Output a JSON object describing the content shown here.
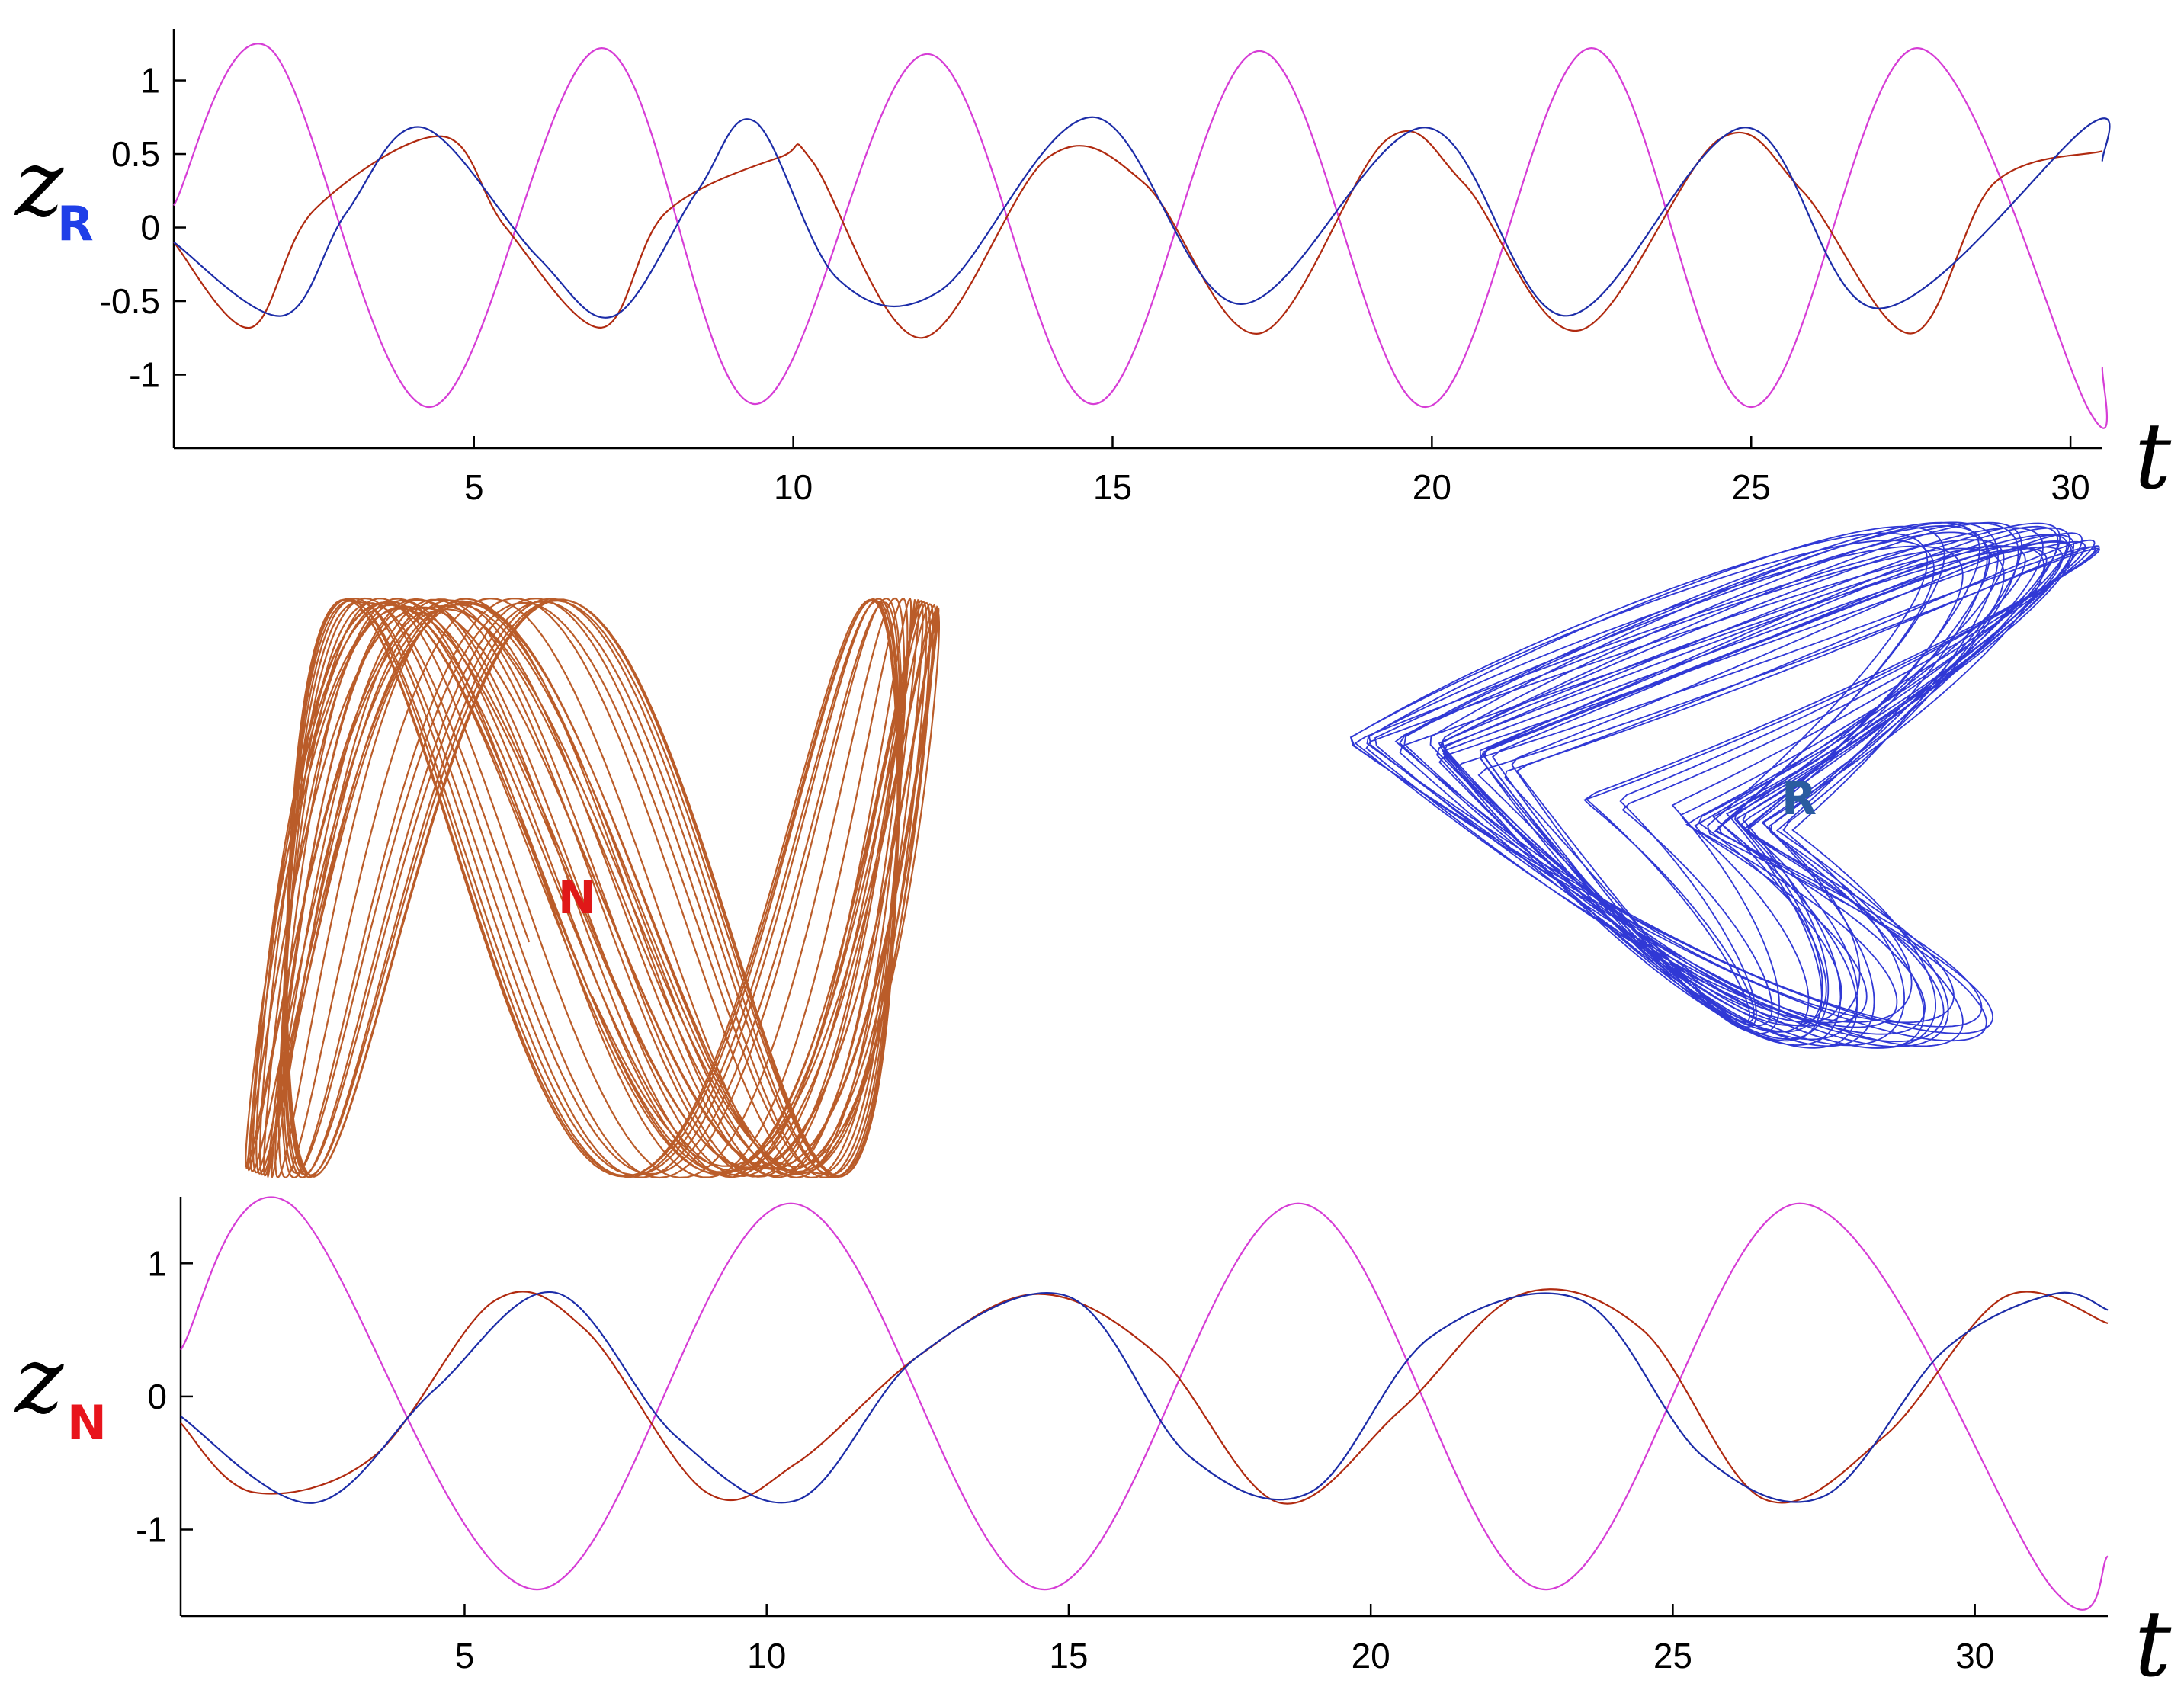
{
  "colors": {
    "magenta": "#d63dd6",
    "red": "#b02a10",
    "blue": "#1c2ca8",
    "attractor_N": "#b24a12",
    "attractor_R": "#1a22d0",
    "sub_R": "#1f3fe8",
    "sub_N": "#e8141c",
    "label_N": "#e01818",
    "label_R": "#2a5ca0"
  },
  "chart_data": [
    {
      "type": "line",
      "panel": "top",
      "ylabel": "z",
      "ylabel_sub": "R",
      "xlabel": "t",
      "xlim": [
        0.3,
        30.5
      ],
      "ylim": [
        -1.5,
        1.35
      ],
      "xticks": [
        5,
        10,
        15,
        20,
        25,
        30
      ],
      "yticks": [
        1,
        0.5,
        0,
        -0.5,
        -1
      ],
      "ytick_labels": [
        "1",
        "0.5",
        "0",
        "-0.5",
        "-1"
      ],
      "series": [
        {
          "color": "magenta",
          "x": [
            0.3,
            1.8,
            4.3,
            7.0,
            9.4,
            12.1,
            14.7,
            17.3,
            19.9,
            22.5,
            25.0,
            27.6,
            30.3,
            30.5
          ],
          "y": [
            0.15,
            1.22,
            -1.22,
            1.22,
            -1.2,
            1.18,
            -1.2,
            1.2,
            -1.22,
            1.22,
            -1.22,
            1.22,
            -1.25,
            -0.95
          ]
        },
        {
          "color": "red",
          "x": [
            0.3,
            1.5,
            2.5,
            4.5,
            5.5,
            7.0,
            8.0,
            9.8,
            10.3,
            12.0,
            14.0,
            15.5,
            17.3,
            19.3,
            20.5,
            22.3,
            24.5,
            25.8,
            27.5,
            28.8,
            30.5
          ],
          "y": [
            -0.1,
            -0.68,
            0.12,
            0.62,
            0.0,
            -0.68,
            0.1,
            0.48,
            0.45,
            -0.75,
            0.48,
            0.3,
            -0.72,
            0.6,
            0.3,
            -0.7,
            0.6,
            0.25,
            -0.72,
            0.3,
            0.52
          ]
        },
        {
          "color": "blue",
          "x": [
            0.3,
            2.0,
            3.0,
            4.2,
            6.0,
            7.2,
            8.5,
            9.4,
            10.7,
            12.3,
            14.7,
            17.0,
            19.9,
            22.1,
            24.9,
            27.0,
            30.3,
            30.5
          ],
          "y": [
            -0.1,
            -0.6,
            0.1,
            0.68,
            -0.2,
            -0.6,
            0.25,
            0.72,
            -0.35,
            -0.43,
            0.75,
            -0.52,
            0.68,
            -0.6,
            0.68,
            -0.55,
            0.7,
            0.45
          ]
        }
      ]
    },
    {
      "type": "line",
      "panel": "bottom",
      "ylabel": "z",
      "ylabel_sub": "N",
      "xlabel": "t",
      "xlim": [
        0.3,
        32.2
      ],
      "ylim": [
        -1.65,
        1.5
      ],
      "xticks": [
        5,
        10,
        15,
        20,
        25,
        30
      ],
      "yticks": [
        1,
        0,
        -1
      ],
      "ytick_labels": [
        "1",
        "0",
        "-1"
      ],
      "series": [
        {
          "color": "magenta",
          "x": [
            0.3,
            2.1,
            6.2,
            10.4,
            14.6,
            18.8,
            22.9,
            27.1,
            31.3,
            32.2
          ],
          "y": [
            0.35,
            1.45,
            -1.45,
            1.45,
            -1.45,
            1.45,
            -1.45,
            1.45,
            -1.45,
            -1.2
          ]
        },
        {
          "color": "red",
          "x": [
            0.3,
            1.5,
            3.5,
            5.5,
            7.0,
            9.0,
            10.5,
            12.5,
            14.5,
            16.5,
            18.5,
            20.5,
            22.5,
            24.5,
            26.5,
            28.5,
            30.5,
            32.2
          ],
          "y": [
            -0.2,
            -0.72,
            -0.45,
            0.72,
            0.5,
            -0.72,
            -0.5,
            0.3,
            0.77,
            0.3,
            -0.8,
            -0.1,
            0.77,
            0.5,
            -0.77,
            -0.3,
            0.75,
            0.55
          ]
        },
        {
          "color": "blue",
          "x": [
            0.3,
            2.5,
            4.5,
            6.5,
            8.5,
            10.5,
            12.5,
            15.0,
            17.0,
            19.0,
            21.0,
            23.5,
            25.5,
            27.5,
            29.5,
            31.3,
            32.2
          ],
          "y": [
            -0.15,
            -0.8,
            0.05,
            0.78,
            -0.3,
            -0.78,
            0.3,
            0.75,
            -0.45,
            -0.72,
            0.45,
            0.72,
            -0.45,
            -0.75,
            0.35,
            0.77,
            0.65
          ]
        }
      ]
    }
  ],
  "attractors": {
    "N": {
      "label": "N"
    },
    "R": {
      "label": "R"
    }
  }
}
